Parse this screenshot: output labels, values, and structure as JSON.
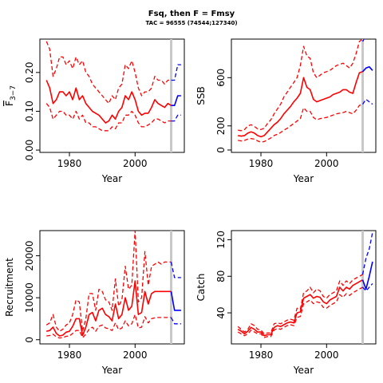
{
  "figure": {
    "title": "Fsq, then F = Fmsy",
    "subtitle": "TAC = 96555 (74544;127340)"
  },
  "colors": {
    "historical": "#ff0000",
    "projection": "#0000ff",
    "marker": "#c8c8c8"
  },
  "chart_data": [
    {
      "type": "line",
      "id": "f",
      "xlabel": "Year",
      "ylabel_main": "F",
      "ylabel_sub": "3−7",
      "xlim": [
        1971,
        2015
      ],
      "ylim": [
        -0.006,
        0.286
      ],
      "xticks": [
        1980,
        2000
      ],
      "yticks": [
        0.0,
        0.1,
        0.2
      ],
      "ytick_labels": [
        "0.00",
        "0.10",
        "0.20"
      ],
      "marker_year": 2011,
      "x": [
        1973,
        1974,
        1975,
        1976,
        1977,
        1978,
        1979,
        1980,
        1981,
        1982,
        1983,
        1984,
        1985,
        1986,
        1987,
        1988,
        1989,
        1990,
        1991,
        1992,
        1993,
        1994,
        1995,
        1996,
        1997,
        1998,
        1999,
        2000,
        2001,
        2002,
        2003,
        2004,
        2005,
        2006,
        2007,
        2008,
        2009,
        2010,
        2011
      ],
      "series": [
        {
          "role": "upper",
          "values": [
            0.28,
            0.26,
            0.19,
            0.21,
            0.24,
            0.24,
            0.22,
            0.23,
            0.21,
            0.24,
            0.22,
            0.23,
            0.2,
            0.19,
            0.17,
            0.16,
            0.15,
            0.14,
            0.13,
            0.12,
            0.14,
            0.13,
            0.16,
            0.17,
            0.22,
            0.21,
            0.23,
            0.2,
            0.16,
            0.14,
            0.15,
            0.15,
            0.16,
            0.19,
            0.18,
            0.18,
            0.17,
            0.18,
            0.18
          ]
        },
        {
          "role": "median",
          "values": [
            0.18,
            0.16,
            0.12,
            0.13,
            0.15,
            0.15,
            0.14,
            0.15,
            0.13,
            0.16,
            0.13,
            0.14,
            0.12,
            0.11,
            0.1,
            0.095,
            0.09,
            0.08,
            0.07,
            0.075,
            0.09,
            0.08,
            0.1,
            0.11,
            0.14,
            0.13,
            0.15,
            0.13,
            0.1,
            0.09,
            0.095,
            0.095,
            0.11,
            0.13,
            0.12,
            0.115,
            0.11,
            0.12,
            0.115
          ]
        },
        {
          "role": "lower",
          "values": [
            0.12,
            0.11,
            0.08,
            0.09,
            0.1,
            0.1,
            0.09,
            0.09,
            0.08,
            0.1,
            0.08,
            0.09,
            0.07,
            0.07,
            0.06,
            0.06,
            0.055,
            0.05,
            0.05,
            0.05,
            0.06,
            0.055,
            0.07,
            0.07,
            0.09,
            0.09,
            0.1,
            0.09,
            0.07,
            0.06,
            0.06,
            0.065,
            0.07,
            0.08,
            0.08,
            0.075,
            0.07,
            0.075,
            0.075
          ]
        }
      ],
      "projection_x": [
        2011,
        2012,
        2013,
        2014
      ],
      "projection": [
        {
          "role": "upper",
          "values": [
            0.18,
            0.18,
            0.22,
            0.22
          ]
        },
        {
          "role": "median",
          "values": [
            0.115,
            0.115,
            0.14,
            0.14
          ]
        },
        {
          "role": "lower",
          "values": [
            0.075,
            0.075,
            0.09,
            0.09
          ]
        }
      ]
    },
    {
      "type": "line",
      "id": "ssb",
      "xlabel": "Year",
      "ylabel_main": "SSB",
      "ylabel_sub": "",
      "xlim": [
        1971,
        2015
      ],
      "ylim": [
        -20,
        920
      ],
      "xticks": [
        1980,
        2000
      ],
      "yticks": [
        0,
        200,
        600
      ],
      "ytick_labels": [
        "0",
        "200",
        "600"
      ],
      "marker_year": 2011,
      "x": [
        1973,
        1974,
        1975,
        1976,
        1977,
        1978,
        1979,
        1980,
        1981,
        1982,
        1983,
        1984,
        1985,
        1986,
        1987,
        1988,
        1989,
        1990,
        1991,
        1992,
        1993,
        1994,
        1995,
        1996,
        1997,
        1998,
        1999,
        2000,
        2001,
        2002,
        2003,
        2004,
        2005,
        2006,
        2007,
        2008,
        2009,
        2010,
        2011
      ],
      "series": [
        {
          "role": "upper",
          "values": [
            165,
            160,
            170,
            200,
            210,
            195,
            175,
            170,
            180,
            220,
            250,
            300,
            340,
            380,
            440,
            480,
            520,
            560,
            600,
            700,
            860,
            780,
            760,
            640,
            600,
            620,
            640,
            650,
            660,
            680,
            700,
            710,
            720,
            700,
            680,
            720,
            800,
            900,
            920
          ]
        },
        {
          "role": "median",
          "values": [
            120,
            115,
            120,
            140,
            150,
            140,
            120,
            110,
            120,
            150,
            180,
            210,
            230,
            260,
            300,
            330,
            360,
            400,
            430,
            470,
            600,
            520,
            500,
            420,
            400,
            410,
            420,
            430,
            440,
            460,
            470,
            480,
            500,
            500,
            480,
            470,
            560,
            640,
            650
          ]
        },
        {
          "role": "lower",
          "values": [
            80,
            75,
            80,
            90,
            95,
            90,
            75,
            65,
            70,
            85,
            100,
            120,
            130,
            145,
            165,
            180,
            200,
            220,
            240,
            260,
            350,
            320,
            320,
            270,
            250,
            260,
            265,
            270,
            280,
            290,
            300,
            305,
            310,
            320,
            310,
            300,
            330,
            370,
            380
          ]
        }
      ],
      "projection_x": [
        2011,
        2012,
        2013,
        2014
      ],
      "projection": [
        {
          "role": "upper",
          "values": [
            900,
            950,
            1000,
            1050
          ]
        },
        {
          "role": "median",
          "values": [
            650,
            680,
            690,
            660
          ]
        },
        {
          "role": "lower",
          "values": [
            380,
            420,
            400,
            380
          ]
        }
      ]
    },
    {
      "type": "line",
      "id": "recruitment",
      "xlabel": "Year",
      "ylabel_main": "Recruitment",
      "ylabel_sub": "",
      "xlim": [
        1971,
        2015
      ],
      "ylim": [
        -1000,
        26000
      ],
      "xticks": [
        1980,
        2000
      ],
      "yticks": [
        0,
        10000,
        20000
      ],
      "ytick_labels": [
        "0",
        "10000",
        "20000"
      ],
      "marker_year": 2011,
      "x": [
        1973,
        1974,
        1975,
        1976,
        1977,
        1978,
        1979,
        1980,
        1981,
        1982,
        1983,
        1984,
        1985,
        1986,
        1987,
        1988,
        1989,
        1990,
        1991,
        1992,
        1993,
        1994,
        1995,
        1996,
        1997,
        1998,
        1999,
        2000,
        2001,
        2002,
        2003,
        2004,
        2005,
        2006,
        2007,
        2008,
        2009,
        2010,
        2011
      ],
      "series": [
        {
          "role": "upper",
          "values": [
            3500,
            4000,
            6000,
            3000,
            2000,
            2500,
            3500,
            4000,
            6000,
            9500,
            9000,
            2000,
            5000,
            11000,
            11000,
            7000,
            12000,
            11500,
            9500,
            9000,
            7000,
            14500,
            8000,
            9500,
            17500,
            12000,
            13000,
            26000,
            9000,
            10000,
            21000,
            13000,
            17500,
            18000,
            18500,
            18000,
            18500,
            18500,
            18500
          ]
        },
        {
          "role": "median",
          "values": [
            2000,
            2200,
            3000,
            1500,
            900,
            1100,
            1800,
            2000,
            3200,
            5000,
            5000,
            1000,
            3000,
            6000,
            6500,
            4500,
            7000,
            7500,
            6000,
            5500,
            4500,
            8500,
            5000,
            6000,
            10000,
            7000,
            8000,
            14000,
            6000,
            6500,
            11500,
            8500,
            11000,
            11500,
            11500,
            11500,
            11500,
            11500,
            11500
          ]
        },
        {
          "role": "lower",
          "values": [
            900,
            1000,
            1300,
            700,
            400,
            500,
            800,
            900,
            1500,
            2200,
            2200,
            500,
            1300,
            2500,
            3000,
            2000,
            3200,
            3500,
            2800,
            2600,
            2200,
            4000,
            2400,
            2800,
            4500,
            3300,
            3800,
            6000,
            2800,
            3000,
            5500,
            4000,
            5000,
            5200,
            5300,
            5300,
            5300,
            5300,
            5300
          ]
        }
      ],
      "projection_x": [
        2011,
        2012,
        2013,
        2014
      ],
      "projection": [
        {
          "role": "upper",
          "values": [
            18500,
            14800,
            14800,
            14800
          ]
        },
        {
          "role": "median",
          "values": [
            11500,
            7000,
            7000,
            7000
          ]
        },
        {
          "role": "lower",
          "values": [
            5300,
            3800,
            3800,
            3800
          ]
        }
      ]
    },
    {
      "type": "line",
      "id": "catch",
      "xlabel": "Year",
      "ylabel_main": "Catch",
      "ylabel_sub": "",
      "xlim": [
        1971,
        2015
      ],
      "ylim": [
        6,
        130
      ],
      "xticks": [
        1980,
        2000
      ],
      "yticks": [
        40,
        80,
        120
      ],
      "ytick_labels": [
        "40",
        "80",
        "120"
      ],
      "marker_year": 2011,
      "x": [
        1973,
        1974,
        1975,
        1976,
        1977,
        1978,
        1979,
        1980,
        1981,
        1982,
        1983,
        1984,
        1985,
        1986,
        1987,
        1988,
        1989,
        1990,
        1991,
        1992,
        1993,
        1994,
        1995,
        1996,
        1997,
        1998,
        1999,
        2000,
        2001,
        2002,
        2003,
        2004,
        2005,
        2006,
        2007,
        2008,
        2009,
        2010,
        2011
      ],
      "series": [
        {
          "role": "upper",
          "values": [
            25,
            22,
            19,
            22,
            28,
            26,
            22,
            21,
            17,
            18,
            18,
            28,
            29,
            28,
            30,
            32,
            33,
            32,
            45,
            44,
            62,
            64,
            68,
            62,
            66,
            64,
            58,
            56,
            60,
            62,
            64,
            75,
            70,
            75,
            72,
            76,
            78,
            80,
            82
          ]
        },
        {
          "role": "median",
          "values": [
            22,
            20,
            17,
            20,
            24,
            22,
            19,
            19,
            15,
            16,
            16,
            24,
            26,
            25,
            27,
            29,
            30,
            29,
            40,
            41,
            56,
            58,
            60,
            56,
            58,
            57,
            52,
            50,
            54,
            56,
            58,
            68,
            64,
            68,
            66,
            70,
            72,
            74,
            76
          ]
        },
        {
          "role": "lower",
          "values": [
            19,
            17,
            15,
            17,
            21,
            19,
            17,
            17,
            13,
            14,
            14,
            21,
            23,
            22,
            24,
            26,
            27,
            26,
            35,
            36,
            50,
            52,
            54,
            50,
            52,
            51,
            46,
            45,
            48,
            50,
            52,
            60,
            57,
            61,
            59,
            62,
            64,
            66,
            68
          ]
        }
      ],
      "projection_x": [
        2011,
        2012,
        2013,
        2014
      ],
      "projection": [
        {
          "role": "upper",
          "values": [
            82,
            100,
            110,
            128
          ]
        },
        {
          "role": "median",
          "values": [
            76,
            66,
            80,
            96
          ]
        },
        {
          "role": "lower",
          "values": [
            68,
            64,
            68,
            72
          ]
        }
      ]
    }
  ]
}
